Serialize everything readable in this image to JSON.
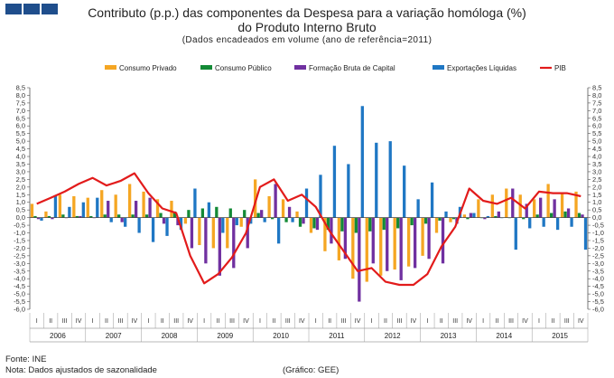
{
  "header": {
    "title_line1": "Contributo (p.p.) das componentes da Despesa para a variação homóloga (%)",
    "title_line2": "do Produto Interno Bruto",
    "subtitle": "(Dados encadeados em volume (ano de referência=2011)"
  },
  "footer": {
    "source": "Fonte: INE",
    "note": "Nota: Dados ajustados de sazonalidade",
    "graph_credit": "(Gráfico: GEE)"
  },
  "chart_data": {
    "type": "bar",
    "title": "Contributo (p.p.) das componentes da Despesa para a variação homóloga (%)",
    "ylim": [
      -6,
      8.5
    ],
    "y_ticks": [
      "8,5",
      "8,0",
      "7,5",
      "7,0",
      "6,5",
      "6,0",
      "5,5",
      "5,0",
      "4,5",
      "4,0",
      "3,5",
      "3,0",
      "2,5",
      "2,0",
      "1,5",
      "1,0",
      "0,5",
      "0,0",
      "-0,5",
      "-1,0",
      "-1,5",
      "-2,0",
      "-2,5",
      "-3,0",
      "-3,5",
      "-4,0",
      "-4,5",
      "-5,0",
      "-5,5",
      "-6,0"
    ],
    "quarters": [
      "I",
      "II",
      "III",
      "IV",
      "I",
      "II",
      "III",
      "IV",
      "I",
      "II",
      "III",
      "IV",
      "I",
      "II",
      "III",
      "IV",
      "I",
      "II",
      "III",
      "IV",
      "I",
      "II",
      "III",
      "IV",
      "I",
      "II",
      "III",
      "IV",
      "I",
      "II",
      "III",
      "IV",
      "I",
      "II",
      "III",
      "IV",
      "I",
      "II",
      "III",
      "IV"
    ],
    "years": [
      "2006",
      "2007",
      "2008",
      "2009",
      "2010",
      "2011",
      "2012",
      "2013",
      "2014",
      "2015"
    ],
    "legend_position": "top",
    "series": [
      {
        "name": "Consumo Privado",
        "type": "bar",
        "color": "#f5a623",
        "values": [
          0.9,
          0.4,
          1.5,
          1.4,
          1.3,
          1.8,
          1.5,
          2.2,
          1.7,
          1.2,
          1.1,
          -0.4,
          -1.8,
          -2.0,
          -2.0,
          -0.6,
          2.5,
          1.4,
          1.2,
          0.4,
          -1.0,
          -2.2,
          -2.8,
          -4.0,
          -4.2,
          -3.8,
          -3.4,
          -3.2,
          -2.5,
          -1.0,
          -0.3,
          0.2,
          1.2,
          1.5,
          1.9,
          1.5,
          1.2,
          2.2,
          1.6,
          1.7
        ]
      },
      {
        "name": "Consumo Público",
        "type": "bar",
        "color": "#138a36",
        "values": [
          0.1,
          0.1,
          0.2,
          0.1,
          0.1,
          0.2,
          0.2,
          0.2,
          0.2,
          0.3,
          0.4,
          0.5,
          0.6,
          0.7,
          0.6,
          0.5,
          0.3,
          -0.1,
          -0.3,
          -0.6,
          -0.7,
          -0.8,
          -0.9,
          -1.0,
          -0.9,
          -0.8,
          -0.7,
          -0.5,
          -0.4,
          -0.2,
          -0.1,
          -0.1,
          0.0,
          0.1,
          0.0,
          -0.1,
          0.2,
          0.3,
          0.4,
          0.3
        ]
      },
      {
        "name": "Formação Bruta de Capital",
        "type": "bar",
        "color": "#7030a0",
        "values": [
          -0.1,
          -0.1,
          0.0,
          0.1,
          0.0,
          1.1,
          -0.3,
          1.1,
          1.3,
          -0.4,
          -0.5,
          -2.0,
          -3.0,
          -3.8,
          -3.3,
          -2.0,
          0.5,
          2.2,
          0.7,
          -0.4,
          -0.8,
          -1.7,
          -2.7,
          -5.5,
          -3.0,
          -3.5,
          -4.1,
          -3.3,
          -2.7,
          -3.0,
          -0.4,
          0.3,
          -0.1,
          0.4,
          1.9,
          0.9,
          1.3,
          1.2,
          0.6,
          0.2
        ]
      },
      {
        "name": "Exportações Líquidas",
        "type": "bar",
        "color": "#1f77c4",
        "values": [
          -0.2,
          1.4,
          0.7,
          1.0,
          1.3,
          -0.3,
          -0.6,
          -1.0,
          -1.6,
          -1.2,
          -0.8,
          1.9,
          1.0,
          -1.0,
          -0.5,
          -0.4,
          -0.3,
          -1.7,
          -0.3,
          1.9,
          2.8,
          4.7,
          3.5,
          7.3,
          4.9,
          5.0,
          3.4,
          1.2,
          2.3,
          0.4,
          0.7,
          0.3,
          0.1,
          0.0,
          -2.1,
          -0.7,
          -0.6,
          -0.8,
          -0.6,
          -2.1
        ]
      },
      {
        "name": "PIB",
        "type": "line",
        "color": "#e21b1b",
        "values": [
          0.9,
          1.3,
          1.7,
          2.2,
          2.6,
          2.1,
          2.4,
          2.9,
          1.6,
          0.6,
          0.3,
          -2.5,
          -4.3,
          -3.7,
          -2.6,
          -1.0,
          2.0,
          2.5,
          1.1,
          1.5,
          0.7,
          -0.9,
          -2.2,
          -3.5,
          -3.3,
          -4.2,
          -4.4,
          -4.4,
          -3.7,
          -1.9,
          -0.6,
          1.9,
          1.1,
          0.9,
          1.3,
          0.6,
          1.7,
          1.6,
          1.6,
          1.4
        ]
      }
    ]
  }
}
